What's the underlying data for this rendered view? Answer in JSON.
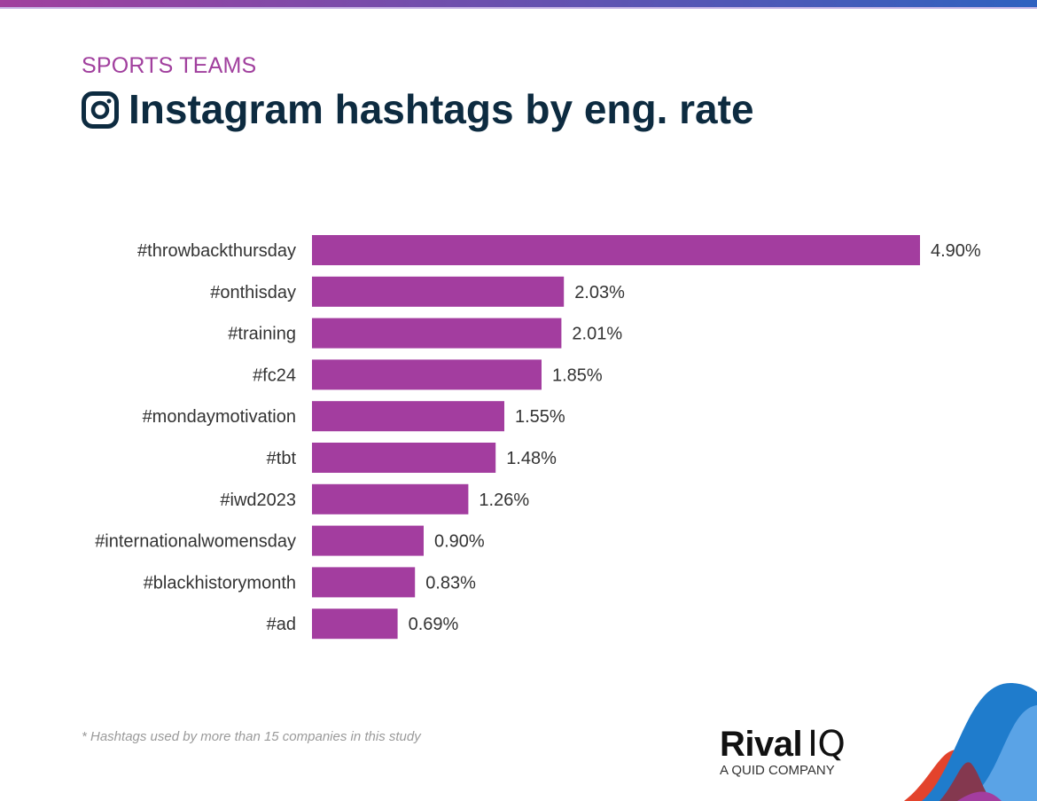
{
  "header": {
    "subtitle": "SPORTS TEAMS",
    "title": "Instagram hashtags by eng. rate",
    "icon": "instagram-icon"
  },
  "footnote": "* Hashtags used by more than 15 companies in this study",
  "brand": {
    "name": "Rival",
    "suffix": "IQ",
    "tagline": "A QUID COMPANY"
  },
  "colors": {
    "bar": "#a33d9f",
    "title": "#0d2b40",
    "subtitle": "#a1409e"
  },
  "chart_data": {
    "type": "bar",
    "orientation": "horizontal",
    "categories": [
      "#throwbackthursday",
      "#onthisday",
      "#training",
      "#fc24",
      "#mondaymotivation",
      "#tbt",
      "#iwd2023",
      "#internationalwomensday",
      "#blackhistorymonth",
      "#ad"
    ],
    "values": [
      4.9,
      2.03,
      2.01,
      1.85,
      1.55,
      1.48,
      1.26,
      0.9,
      0.83,
      0.69
    ],
    "labels": [
      "4.90%",
      "2.03%",
      "2.01%",
      "1.85%",
      "1.55%",
      "1.48%",
      "1.26%",
      "0.90%",
      "0.83%",
      "0.69%"
    ],
    "unit": "%",
    "grid": false,
    "xlim": [
      0,
      4.9
    ]
  }
}
